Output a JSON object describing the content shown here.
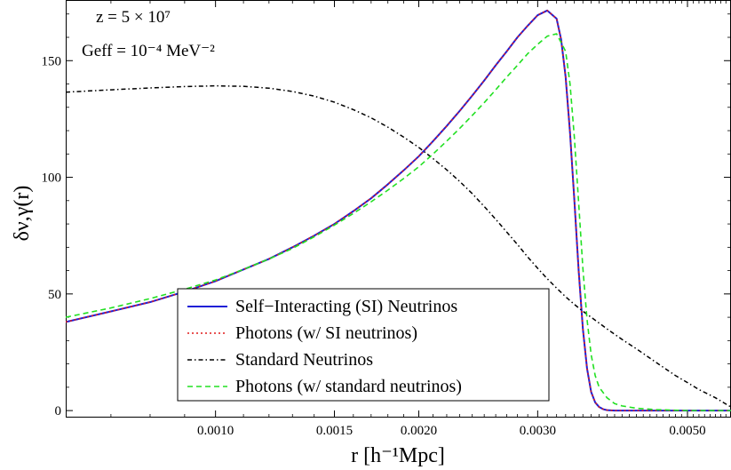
{
  "chart_data": {
    "type": "line",
    "xlabel": "r [h⁻¹Mpc]",
    "ylabel": "δν,γ(r)",
    "xscale": "log",
    "xlim": [
      0.0006,
      0.0058
    ],
    "ylim": [
      -3,
      176
    ],
    "grid": false,
    "legend_position": "bottom-center",
    "x_ticks": [
      {
        "value": 0.001,
        "label": "0.0010"
      },
      {
        "value": 0.0015,
        "label": "0.0015"
      },
      {
        "value": 0.002,
        "label": "0.0020"
      },
      {
        "value": 0.003,
        "label": "0.0030"
      },
      {
        "value": 0.005,
        "label": "0.0050"
      }
    ],
    "y_ticks": [
      {
        "value": 0,
        "label": "0"
      },
      {
        "value": 50,
        "label": "50"
      },
      {
        "value": 100,
        "label": "100"
      },
      {
        "value": 150,
        "label": "150"
      }
    ],
    "annotations": [
      "z = 5 × 10⁷",
      "Geff = 10⁻⁴ MeV⁻²"
    ],
    "series": [
      {
        "name": "Self−Interacting (SI) Neutrinos",
        "color": "#1f1fd6",
        "dash": "solid",
        "x": [
          0.0006,
          0.0007,
          0.0008,
          0.0009,
          0.001,
          0.0011,
          0.0012,
          0.0013,
          0.0014,
          0.0015,
          0.0016,
          0.0017,
          0.0018,
          0.0019,
          0.002,
          0.0021,
          0.0022,
          0.0023,
          0.0024,
          0.0025,
          0.0026,
          0.0027,
          0.0028,
          0.0029,
          0.003,
          0.0031,
          0.0032,
          0.00325,
          0.0033,
          0.00335,
          0.0034,
          0.00345,
          0.0035,
          0.00355,
          0.0036,
          0.00365,
          0.0037,
          0.00375,
          0.0038,
          0.0039,
          0.004,
          0.0042,
          0.0045,
          0.005,
          0.0058
        ],
        "y": [
          38,
          42.5,
          46.5,
          51,
          55.5,
          60.5,
          65,
          70,
          75,
          80,
          85.5,
          91,
          97,
          103,
          109,
          115.5,
          122,
          128.5,
          135,
          141.5,
          148,
          154,
          160,
          165,
          169.5,
          171.5,
          168,
          159,
          143,
          119,
          90,
          60,
          35,
          18,
          8,
          3.5,
          1.5,
          0.6,
          0.2,
          0,
          0,
          0,
          0,
          0,
          0
        ]
      },
      {
        "name": "Photons (w/ SI neutrinos)",
        "color": "#e01a1a",
        "dash": "dotted",
        "x": [
          0.0006,
          0.0007,
          0.0008,
          0.0009,
          0.001,
          0.0011,
          0.0012,
          0.0013,
          0.0014,
          0.0015,
          0.0016,
          0.0017,
          0.0018,
          0.0019,
          0.002,
          0.0021,
          0.0022,
          0.0023,
          0.0024,
          0.0025,
          0.0026,
          0.0027,
          0.0028,
          0.0029,
          0.003,
          0.0031,
          0.0032,
          0.00325,
          0.0033,
          0.00335,
          0.0034,
          0.00345,
          0.0035,
          0.00355,
          0.0036,
          0.00365,
          0.0037,
          0.00375,
          0.0038,
          0.0039,
          0.004,
          0.0042,
          0.0045,
          0.005,
          0.0058
        ],
        "y": [
          38,
          42.5,
          46.5,
          51,
          55.5,
          60.5,
          65,
          70,
          75,
          80,
          85.5,
          91,
          97,
          103,
          109,
          115.5,
          122,
          128.5,
          135,
          141.5,
          148,
          154,
          160,
          165,
          169.5,
          171.5,
          168,
          159,
          143,
          119,
          90,
          60,
          35,
          18,
          8,
          3.5,
          1.5,
          0.6,
          0.2,
          0,
          0,
          0,
          0,
          0,
          0
        ]
      },
      {
        "name": "Standard Neutrinos",
        "color": "#000000",
        "dash": "dashdot",
        "x": [
          0.0006,
          0.0007,
          0.0008,
          0.0009,
          0.001,
          0.0011,
          0.0012,
          0.0013,
          0.0014,
          0.0015,
          0.0016,
          0.0017,
          0.0018,
          0.0019,
          0.002,
          0.0021,
          0.0022,
          0.0023,
          0.0024,
          0.0025,
          0.0026,
          0.0027,
          0.0028,
          0.0029,
          0.003,
          0.0031,
          0.0032,
          0.0033,
          0.0034,
          0.0035,
          0.0036,
          0.0037,
          0.0038,
          0.004,
          0.0042,
          0.0045,
          0.0048,
          0.005,
          0.0052,
          0.0055,
          0.0058
        ],
        "y": [
          136.5,
          137.5,
          138.3,
          138.9,
          139.2,
          139,
          138.2,
          136.8,
          134.8,
          132.2,
          129,
          125.5,
          121.5,
          117.2,
          112.8,
          108,
          103.2,
          98.2,
          93,
          87.5,
          82,
          76.5,
          71.2,
          65.8,
          61,
          56.5,
          52.5,
          48.8,
          45.5,
          42.6,
          40,
          37.5,
          35,
          30.5,
          26.5,
          20.5,
          15,
          12,
          9,
          5.5,
          1.5
        ]
      },
      {
        "name": "Photons (w/ standard neutrinos)",
        "color": "#22e022",
        "dash": "dashed",
        "x": [
          0.0006,
          0.0007,
          0.0008,
          0.0009,
          0.001,
          0.0011,
          0.0012,
          0.0013,
          0.0014,
          0.0015,
          0.0016,
          0.0017,
          0.0018,
          0.0019,
          0.002,
          0.0021,
          0.0022,
          0.0023,
          0.0024,
          0.0025,
          0.0026,
          0.0027,
          0.0028,
          0.0029,
          0.003,
          0.0031,
          0.0032,
          0.0033,
          0.00335,
          0.0034,
          0.00345,
          0.0035,
          0.00355,
          0.0036,
          0.00365,
          0.0037,
          0.0038,
          0.0039,
          0.004,
          0.0042,
          0.0045,
          0.005,
          0.0058
        ],
        "y": [
          40,
          44,
          48,
          52,
          56,
          60.5,
          65,
          69.5,
          74.5,
          79.5,
          84.5,
          89.5,
          94.5,
          99.5,
          104.5,
          110,
          115.5,
          121,
          126.5,
          132,
          137.5,
          143,
          148,
          153,
          157,
          160.5,
          161.5,
          154,
          140,
          117,
          89,
          61,
          39,
          24,
          15,
          10,
          5.5,
          3,
          2,
          1,
          0.4,
          0,
          0
        ]
      }
    ]
  }
}
